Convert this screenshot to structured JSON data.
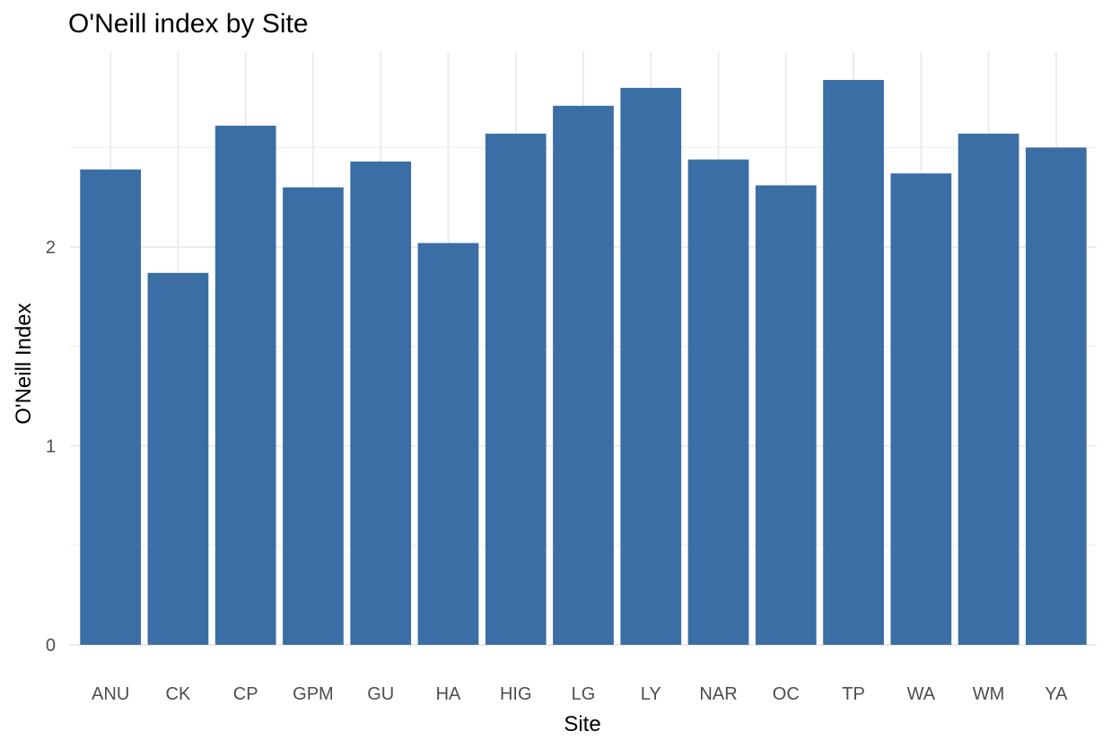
{
  "chart_data": {
    "type": "bar",
    "title": "O'Neill index by Site",
    "xlabel": "Site",
    "ylabel": "O'Neill Index",
    "categories": [
      "ANU",
      "CK",
      "CP",
      "GPM",
      "GU",
      "HA",
      "HIG",
      "LG",
      "LY",
      "NAR",
      "OC",
      "TP",
      "WA",
      "WM",
      "YA"
    ],
    "values": [
      2.39,
      1.87,
      2.61,
      2.3,
      2.43,
      2.02,
      2.57,
      2.71,
      2.8,
      2.44,
      2.31,
      2.84,
      2.37,
      2.57,
      2.5
    ],
    "yticks": [
      0,
      1,
      2
    ],
    "ylim": [
      0,
      2.98
    ],
    "grid": true,
    "bar_color": "#3A6EA5",
    "grid_color": "#EBEBEB",
    "legend": "none"
  }
}
